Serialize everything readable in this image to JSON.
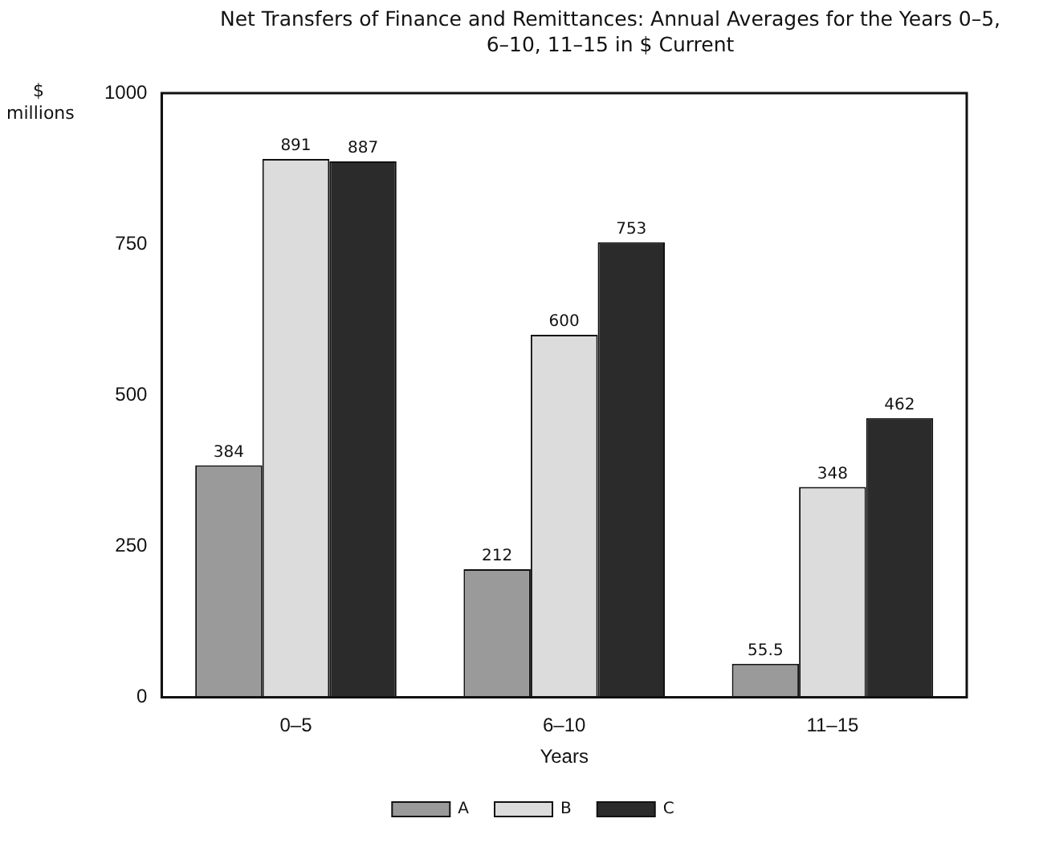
{
  "chart_data": {
    "type": "bar",
    "title": "Net Transfers of Finance and Remittances: Annual Averages for the Years 0–5, 6–10, 11–15 in $ Current",
    "xlabel": "Years",
    "ylabel": "$ millions",
    "categories": [
      "0–5",
      "6–10",
      "11–15"
    ],
    "series": [
      {
        "name": "A",
        "color": "#9a9a9a",
        "values": [
          384,
          212,
          55.5
        ]
      },
      {
        "name": "B",
        "color": "#dcdcdc",
        "values": [
          891,
          600,
          348
        ]
      },
      {
        "name": "C",
        "color": "#2b2b2b",
        "values": [
          887,
          753,
          462
        ]
      }
    ],
    "ylim": [
      0,
      1000
    ],
    "yticks": [
      0,
      250,
      500,
      750,
      1000
    ],
    "grid": false,
    "legend": "bottom",
    "data_labels": true
  }
}
